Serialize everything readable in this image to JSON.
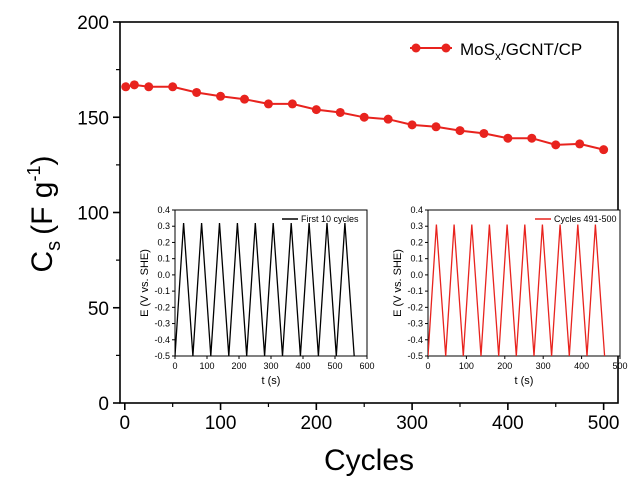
{
  "chart_data": {
    "type": "line",
    "xlabel": "Cycles",
    "ylabel": {
      "main": "C",
      "sub": "s",
      "unit_open": "(F g",
      "sup": "-1",
      "unit_close": ")"
    },
    "xlim": [
      -5,
      515
    ],
    "ylim": [
      0,
      200
    ],
    "xticks": [
      0,
      100,
      200,
      300,
      400,
      500
    ],
    "yticks": [
      0,
      50,
      100,
      150,
      200
    ],
    "legend": {
      "position": "top-right",
      "label_main": "MoS",
      "label_sub": "x",
      "label_rest": "/GCNT/CP"
    },
    "colors": {
      "series": "#e8231e"
    },
    "series": [
      {
        "name": "MoSx/GCNT/CP",
        "x": [
          1,
          10,
          25,
          50,
          75,
          100,
          125,
          150,
          175,
          200,
          225,
          250,
          275,
          300,
          325,
          350,
          375,
          400,
          425,
          450,
          475,
          500
        ],
        "y": [
          166,
          167,
          166,
          166,
          163,
          161,
          159.5,
          157,
          157,
          154,
          152.5,
          150,
          149,
          146,
          145,
          143,
          141.5,
          139,
          139,
          135.5,
          136,
          133
        ]
      }
    ],
    "insets": [
      {
        "name": "inset-first-cycles",
        "legend_label": "First 10 cycles",
        "color": "#000000",
        "xlabel": "t (s)",
        "ylabel": "E (V vs. SHE)",
        "xlim": [
          0,
          600
        ],
        "ylim": [
          -0.5,
          0.4
        ],
        "xticks": [
          0,
          100,
          200,
          300,
          400,
          500,
          600
        ],
        "yticks": [
          -0.5,
          -0.4,
          -0.3,
          -0.2,
          -0.1,
          0.0,
          0.1,
          0.2,
          0.3,
          0.4
        ],
        "ytick_labels": [
          "-0.5",
          "-0.4",
          "-0.3",
          "-0.2",
          "-0.1",
          "0.0",
          "0.1",
          "0.2",
          "0.3",
          "0.4"
        ],
        "cycles": 10,
        "period": 56,
        "charge_time": 27,
        "t_end": 560,
        "emin": -0.5,
        "emax": 0.32
      },
      {
        "name": "inset-last-cycles",
        "legend_label": "Cycles 491-500",
        "color": "#e8231e",
        "xlabel": "t (s)",
        "ylabel": "E (V vs. SHE)",
        "xlim": [
          0,
          500
        ],
        "ylim": [
          -0.5,
          0.4
        ],
        "xticks": [
          0,
          100,
          200,
          300,
          400,
          500
        ],
        "yticks": [
          -0.5,
          -0.4,
          -0.3,
          -0.2,
          -0.1,
          0.0,
          0.1,
          0.2,
          0.3,
          0.4
        ],
        "ytick_labels": [
          "-0.5",
          "-0.4",
          "-0.3",
          "-0.2",
          "-0.1",
          "0.0",
          "0.1",
          "0.2",
          "0.3",
          "0.4"
        ],
        "cycles": 10,
        "period": 46,
        "charge_time": 22,
        "t_end": 460,
        "emin": -0.5,
        "emax": 0.31
      }
    ]
  }
}
